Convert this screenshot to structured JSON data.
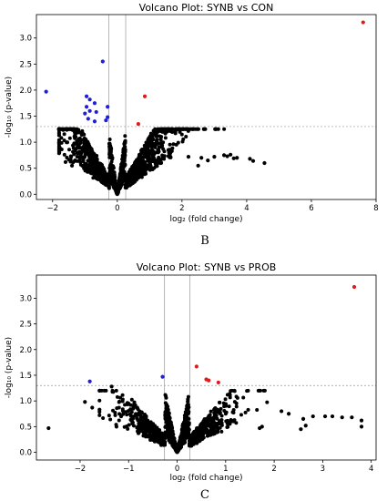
{
  "colors": {
    "significant_down": "#1f1fd6",
    "significant_up": "#e01a1a",
    "not_significant": "#000000",
    "threshold_line": "#9a9a9a"
  },
  "chart_data": [
    {
      "type": "scatter",
      "panel_letter": "B",
      "title": "Volcano Plot: SYNB vs CON",
      "xlabel": "log₂ (fold change)",
      "ylabel": "-log₁₀ (p-value)",
      "xlim": [
        -2.5,
        8.0
      ],
      "ylim": [
        -0.1,
        3.45
      ],
      "xticks": [
        -2,
        0,
        2,
        4,
        6,
        8
      ],
      "yticks": [
        0.0,
        0.5,
        1.0,
        1.5,
        2.0,
        2.5,
        3.0
      ],
      "thresholds": {
        "fold_change": [
          -0.26,
          0.26
        ],
        "p_value": 1.3
      },
      "grid": false,
      "series": [
        {
          "color_key": "significant_up",
          "points": [
            [
              7.6,
              3.3
            ],
            [
              0.85,
              1.88
            ],
            [
              0.65,
              1.35
            ]
          ]
        },
        {
          "color_key": "significant_down",
          "points": [
            [
              -2.2,
              1.97
            ],
            [
              -0.45,
              2.55
            ],
            [
              -0.95,
              1.88
            ],
            [
              -0.85,
              1.82
            ],
            [
              -0.7,
              1.75
            ],
            [
              -0.95,
              1.68
            ],
            [
              -0.3,
              1.68
            ],
            [
              -0.85,
              1.6
            ],
            [
              -0.65,
              1.58
            ],
            [
              -1.0,
              1.55
            ],
            [
              -0.9,
              1.45
            ],
            [
              -0.7,
              1.4
            ],
            [
              -0.3,
              1.48
            ],
            [
              -0.35,
              1.42
            ]
          ]
        },
        {
          "color_key": "not_significant",
          "cloud": {
            "count": 1500,
            "x_spread": 1.4,
            "x_min": -1.8,
            "x_max": 4.6,
            "y_max": 1.25,
            "seed": 7
          },
          "points": [
            [
              3.3,
              0.75
            ],
            [
              3.4,
              0.73
            ],
            [
              3.5,
              0.76
            ],
            [
              3.6,
              0.69
            ],
            [
              3.7,
              0.7
            ],
            [
              4.1,
              0.68
            ],
            [
              4.2,
              0.64
            ],
            [
              4.55,
              0.6
            ],
            [
              2.6,
              0.7
            ],
            [
              2.8,
              0.65
            ],
            [
              3.0,
              0.72
            ],
            [
              2.2,
              0.72
            ],
            [
              2.5,
              0.55
            ],
            [
              -1.6,
              0.62
            ],
            [
              -1.4,
              0.55
            ],
            [
              -1.1,
              0.8
            ]
          ]
        }
      ]
    },
    {
      "type": "scatter",
      "panel_letter": "C",
      "title": "Volcano Plot: SYNB vs PROB",
      "xlabel": "log₂ (fold change)",
      "ylabel": "-log₁₀ (p-value)",
      "xlim": [
        -2.9,
        4.1
      ],
      "ylim": [
        -0.15,
        3.45
      ],
      "xticks": [
        -2,
        -1,
        0,
        1,
        2,
        3,
        4
      ],
      "yticks": [
        0.0,
        0.5,
        1.0,
        1.5,
        2.0,
        2.5,
        3.0
      ],
      "thresholds": {
        "fold_change": [
          -0.26,
          0.26
        ],
        "p_value": 1.3
      },
      "grid": false,
      "series": [
        {
          "color_key": "significant_up",
          "points": [
            [
              3.65,
              3.22
            ],
            [
              0.4,
              1.67
            ],
            [
              0.6,
              1.42
            ],
            [
              0.65,
              1.4
            ],
            [
              0.85,
              1.36
            ]
          ]
        },
        {
          "color_key": "significant_down",
          "points": [
            [
              -1.8,
              1.38
            ],
            [
              -0.3,
              1.47
            ]
          ]
        },
        {
          "color_key": "not_significant",
          "cloud": {
            "count": 1200,
            "x_spread": 0.75,
            "x_min": -1.6,
            "x_max": 3.8,
            "y_max": 1.2,
            "seed": 11
          },
          "points": [
            [
              -2.65,
              0.47
            ],
            [
              -1.9,
              0.98
            ],
            [
              -1.75,
              0.87
            ],
            [
              -1.6,
              0.83
            ],
            [
              -1.35,
              1.28
            ],
            [
              -1.25,
              0.5
            ],
            [
              1.75,
              0.5
            ],
            [
              1.7,
              0.47
            ],
            [
              2.15,
              0.8
            ],
            [
              2.3,
              0.75
            ],
            [
              2.6,
              0.65
            ],
            [
              2.8,
              0.7
            ],
            [
              3.05,
              0.7
            ],
            [
              3.2,
              0.7
            ],
            [
              3.4,
              0.68
            ],
            [
              3.6,
              0.68
            ],
            [
              3.8,
              0.5
            ],
            [
              3.8,
              0.62
            ],
            [
              2.65,
              0.52
            ],
            [
              2.55,
              0.45
            ]
          ]
        }
      ]
    }
  ]
}
